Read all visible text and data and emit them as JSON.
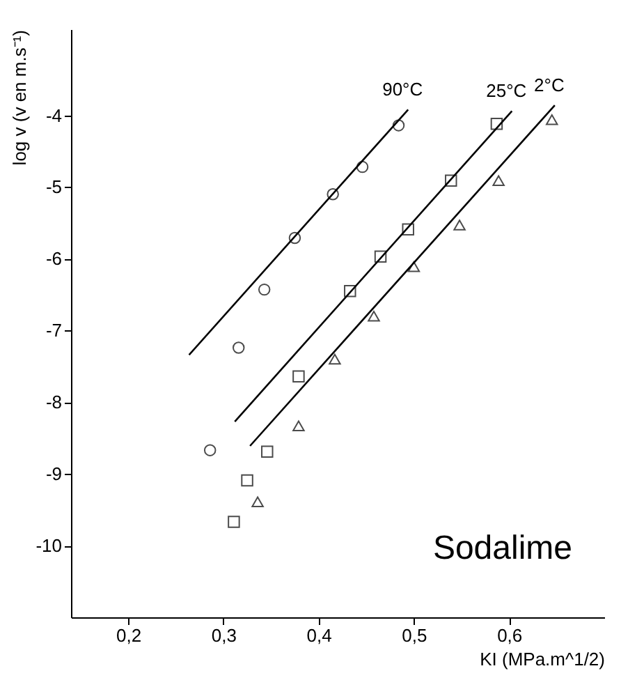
{
  "chart_data": {
    "type": "scatter",
    "xlabel": "KI   (MPa.m^1/2)",
    "ylabel": "log v   (v en m.s⁻¹)",
    "xlim": [
      0.14,
      0.7
    ],
    "ylim": [
      -11,
      -2.8
    ],
    "xticks": [
      {
        "value": 0.2,
        "label": "0,2"
      },
      {
        "value": 0.3,
        "label": "0,3"
      },
      {
        "value": 0.4,
        "label": "0,4"
      },
      {
        "value": 0.5,
        "label": "0,5"
      },
      {
        "value": 0.6,
        "label": "0,6"
      }
    ],
    "yticks": [
      -10,
      -9,
      -8,
      -7,
      -6,
      -5,
      -4
    ],
    "grid": false,
    "series": [
      {
        "marker": "circle",
        "color": "#000000",
        "x": [
          0.286,
          0.316,
          0.343,
          0.375,
          0.415,
          0.446,
          0.484
        ],
        "values": [
          -8.67,
          -7.24,
          -6.43,
          -5.71,
          -5.1,
          -4.72,
          -4.14
        ]
      },
      {
        "marker": "square",
        "color": "#000000",
        "x": [
          0.311,
          0.325,
          0.346,
          0.379,
          0.433,
          0.465,
          0.494,
          0.539,
          0.587
        ],
        "values": [
          -9.67,
          -9.09,
          -8.69,
          -7.64,
          -6.45,
          -5.97,
          -5.59,
          -4.91,
          -4.12
        ]
      },
      {
        "marker": "triangle",
        "color": "#000000",
        "x": [
          0.336,
          0.379,
          0.417,
          0.458,
          0.5,
          0.548,
          0.589,
          0.645
        ],
        "values": [
          -9.39,
          -8.33,
          -7.4,
          -6.8,
          -6.11,
          -5.53,
          -4.91,
          -4.06
        ]
      },
      {
        "type": "line",
        "name": "90°C",
        "color": "#000000",
        "x": [
          0.264,
          0.494
        ],
        "values": [
          -7.34,
          -3.92
        ]
      },
      {
        "type": "line",
        "name": "25°C",
        "color": "#000000",
        "x": [
          0.312,
          0.603
        ],
        "values": [
          -8.27,
          -3.94
        ]
      },
      {
        "type": "line",
        "name": "2°C",
        "color": "#000000",
        "x": [
          0.328,
          0.648
        ],
        "values": [
          -8.61,
          -3.86
        ]
      }
    ],
    "annotations": [
      "Sodalime"
    ]
  }
}
